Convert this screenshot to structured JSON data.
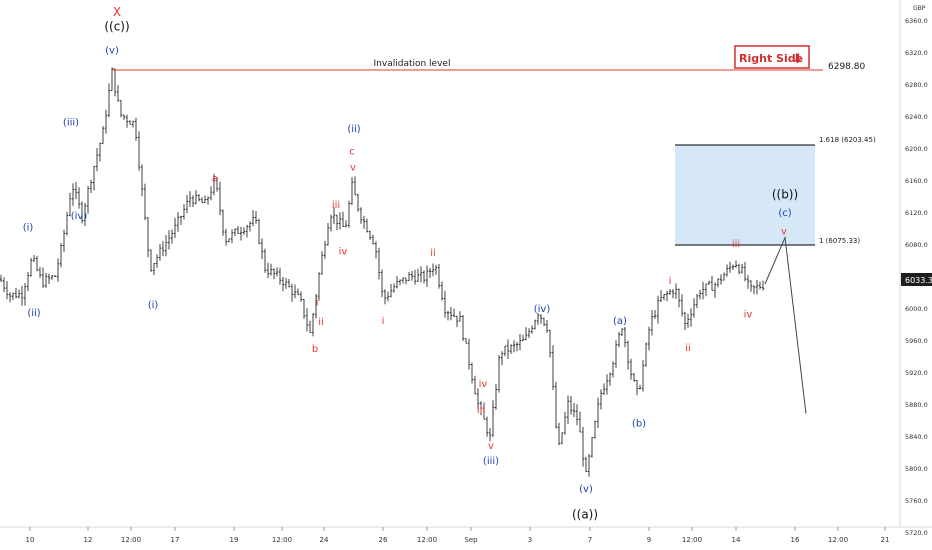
{
  "chart_data": {
    "type": "candlestick",
    "currency": "GBP",
    "title": "",
    "xlabel": "",
    "ylabel": "",
    "ylim": [
      5715,
      6385
    ],
    "y_ticks": [
      "6360.0",
      "6320.0",
      "6280.0",
      "6240.0",
      "6200.0",
      "6160.0",
      "6120.0",
      "6080.0",
      "6040.0",
      "6000.0",
      "5960.0",
      "5920.0",
      "5880.0",
      "5840.0",
      "5800.0",
      "5760.0",
      "5720.0"
    ],
    "x_ticks": [
      "10",
      "12",
      "12:00",
      "17",
      "19",
      "12:00",
      "24",
      "26",
      "12:00",
      "Sep",
      "3",
      "7",
      "9",
      "12:00",
      "14",
      "16",
      "12:00",
      "21"
    ],
    "last_price": "6033.3",
    "invalidation": {
      "label": "Invalidation level",
      "value_label": "6298.80",
      "value": 6298.8
    },
    "fib_levels": [
      {
        "label": "1.618 (6203.45)",
        "value": 6203.45
      },
      {
        "label": "1 (6075.33)",
        "value": 6075.33
      }
    ],
    "badge": {
      "text": "Right Side",
      "arrow": "⬇"
    },
    "waypoints": [
      [
        0,
        6036
      ],
      [
        10,
        6016
      ],
      [
        22,
        6018
      ],
      [
        32,
        6062
      ],
      [
        42,
        6032
      ],
      [
        55,
        6040
      ],
      [
        62,
        6078
      ],
      [
        72,
        6155
      ],
      [
        82,
        6115
      ],
      [
        92,
        6168
      ],
      [
        103,
        6220
      ],
      [
        112,
        6295
      ],
      [
        120,
        6242
      ],
      [
        135,
        6230
      ],
      [
        150,
        6050
      ],
      [
        160,
        6070
      ],
      [
        175,
        6100
      ],
      [
        190,
        6138
      ],
      [
        205,
        6130
      ],
      [
        215,
        6160
      ],
      [
        225,
        6085
      ],
      [
        240,
        6098
      ],
      [
        255,
        6110
      ],
      [
        265,
        6050
      ],
      [
        282,
        6035
      ],
      [
        300,
        6010
      ],
      [
        310,
        5968
      ],
      [
        320,
        6050
      ],
      [
        330,
        6120
      ],
      [
        345,
        6098
      ],
      [
        352,
        6152
      ],
      [
        360,
        6118
      ],
      [
        375,
        6080
      ],
      [
        383,
        6010
      ],
      [
        395,
        6028
      ],
      [
        410,
        6040
      ],
      [
        425,
        6038
      ],
      [
        435,
        6055
      ],
      [
        445,
        6000
      ],
      [
        460,
        5985
      ],
      [
        478,
        5880
      ],
      [
        490,
        5838
      ],
      [
        500,
        5945
      ],
      [
        512,
        5950
      ],
      [
        525,
        5960
      ],
      [
        538,
        5995
      ],
      [
        548,
        5975
      ],
      [
        558,
        5820
      ],
      [
        568,
        5880
      ],
      [
        578,
        5860
      ],
      [
        586,
        5790
      ],
      [
        600,
        5890
      ],
      [
        612,
        5930
      ],
      [
        622,
        5978
      ],
      [
        632,
        5912
      ],
      [
        638,
        5890
      ],
      [
        650,
        5980
      ],
      [
        660,
        6010
      ],
      [
        675,
        6025
      ],
      [
        685,
        5980
      ],
      [
        700,
        6022
      ],
      [
        716,
        6030
      ],
      [
        735,
        6058
      ],
      [
        742,
        6045
      ],
      [
        750,
        6022
      ],
      [
        765,
        6030
      ]
    ],
    "projection": [
      [
        765,
        6030
      ],
      [
        785,
        6088
      ],
      [
        806,
        5868
      ]
    ],
    "labels": [
      {
        "text": "X",
        "value": 6370,
        "color": "red"
      },
      {
        "text": "((c))",
        "value": 6352,
        "color": "black"
      },
      {
        "text": "(v)",
        "value": 6323,
        "color": "blue"
      },
      {
        "text": "(i)",
        "value": 6102,
        "color": "blue"
      },
      {
        "text": "(ii)",
        "value": 5995,
        "color": "blue"
      },
      {
        "text": "(iii)",
        "value": 6233,
        "color": "blue"
      },
      {
        "text": "(iv)",
        "value": 6116,
        "color": "blue"
      },
      {
        "text": "(i)",
        "value": 6005,
        "color": "blue"
      },
      {
        "text": "a",
        "value": 6163,
        "color": "red"
      },
      {
        "text": "b",
        "value": 5950,
        "color": "red"
      },
      {
        "text": "i",
        "value": 6008,
        "color": "red"
      },
      {
        "text": "ii",
        "value": 5984,
        "color": "red"
      },
      {
        "text": "iii",
        "value": 6130,
        "color": "red"
      },
      {
        "text": "iv",
        "value": 6072,
        "color": "red"
      },
      {
        "text": "(ii)",
        "value": 6225,
        "color": "blue"
      },
      {
        "text": "c",
        "value": 6197,
        "color": "red"
      },
      {
        "text": "v",
        "value": 6177,
        "color": "red"
      },
      {
        "text": "i",
        "value": 5985,
        "color": "red"
      },
      {
        "text": "ii",
        "value": 6070,
        "color": "red"
      },
      {
        "text": "iv",
        "value": 5906,
        "color": "red"
      },
      {
        "text": "iii",
        "value": 5874,
        "color": "red"
      },
      {
        "text": "v",
        "value": 5829,
        "color": "red"
      },
      {
        "text": "(iii)",
        "value": 5810,
        "color": "blue"
      },
      {
        "text": "(iv)",
        "value": 6000,
        "color": "blue"
      },
      {
        "text": "(v)",
        "value": 5775,
        "color": "blue"
      },
      {
        "text": "((a))",
        "value": 5742,
        "color": "black"
      },
      {
        "text": "(a)",
        "value": 5985,
        "color": "blue"
      },
      {
        "text": "(b)",
        "value": 5857,
        "color": "blue"
      },
      {
        "text": "i",
        "value": 6035,
        "color": "red"
      },
      {
        "text": "ii",
        "value": 5951,
        "color": "red"
      },
      {
        "text": "iii",
        "value": 6081,
        "color": "red"
      },
      {
        "text": "iv",
        "value": 5993,
        "color": "red"
      },
      {
        "text": "((b))",
        "value": 6142,
        "color": "black"
      },
      {
        "text": "(c)",
        "value": 6120,
        "color": "blue"
      },
      {
        "text": "v",
        "value": 6097,
        "color": "red"
      }
    ]
  }
}
